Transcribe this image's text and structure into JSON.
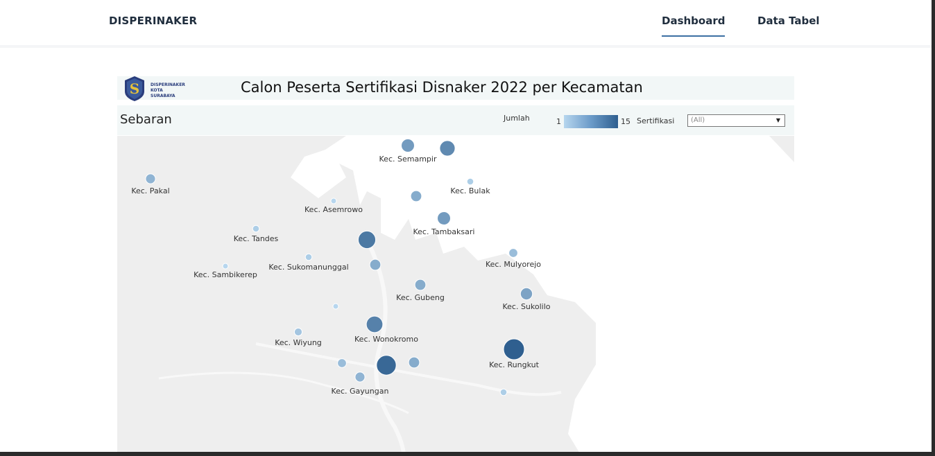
{
  "nav": {
    "brand": "DISPERINAKER",
    "links": [
      {
        "label": "Dashboard",
        "active": true
      },
      {
        "label": "Data Tabel",
        "active": false
      }
    ]
  },
  "dashboard": {
    "logo_text": [
      "DISPERINAKER",
      "KOTA SURABAYA"
    ],
    "title": "Calon Peserta Sertifikasi Disnaker 2022 per Kecamatan",
    "section_title": "Sebaran",
    "legend": {
      "title": "Jumlah",
      "min": "1",
      "max": "15",
      "color_low": "#b7d6ee",
      "color_high": "#2f5f8f"
    },
    "filter": {
      "label": "Sertifikasi",
      "value": "(All)"
    }
  },
  "map_points": [
    {
      "name": "Kec. Pakal",
      "count": 5
    },
    {
      "name": "Kec. Semampir",
      "count": 8
    },
    {
      "name": "",
      "count": 10
    },
    {
      "name": "Kec. Bulak",
      "count": 2
    },
    {
      "name": "Kec. Asemrowo",
      "count": 1
    },
    {
      "name": "",
      "count": 6
    },
    {
      "name": "Kec. Tambaksari",
      "count": 8
    },
    {
      "name": "Kec. Tandes",
      "count": 2
    },
    {
      "name": "",
      "count": 12
    },
    {
      "name": "Kec. Sukomanunggal",
      "count": 2
    },
    {
      "name": "",
      "count": 6
    },
    {
      "name": "Kec. Mulyorejo",
      "count": 4
    },
    {
      "name": "Kec. Sambikerep",
      "count": 1
    },
    {
      "name": "Kec. Gubeng",
      "count": 6
    },
    {
      "name": "Kec. Sukolilo",
      "count": 7
    },
    {
      "name": "",
      "count": 1
    },
    {
      "name": "Kec. Wonokromo",
      "count": 11
    },
    {
      "name": "Kec. Wiyung",
      "count": 3
    },
    {
      "name": "Kec. Rungkut",
      "count": 15
    },
    {
      "name": "",
      "count": 4
    },
    {
      "name": "",
      "count": 14
    },
    {
      "name": "",
      "count": 6
    },
    {
      "name": "Kec. Gayungan",
      "count": 5
    },
    {
      "name": "",
      "count": 2
    }
  ]
}
